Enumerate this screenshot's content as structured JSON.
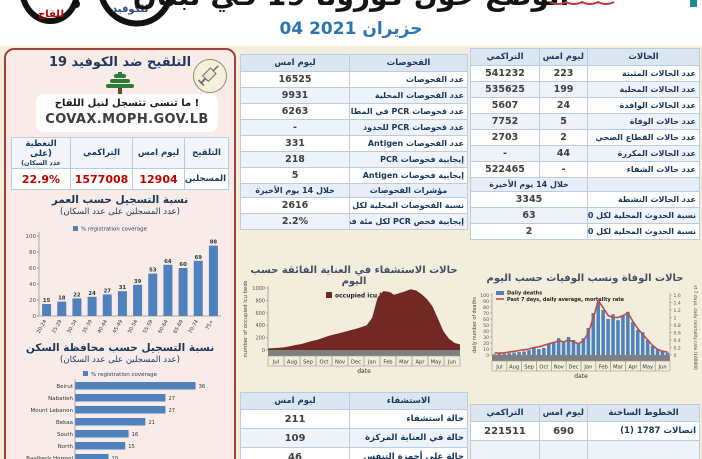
{
  "header": {
    "title": "الوضع حول كورونا 19 في لبنان",
    "date": "04 حزيران 2021",
    "phone_vaccine_label": "للقاح",
    "phone_covid_label": "للكوفيد"
  },
  "vaccine": {
    "title": "التلقيح ضد الكوفيد 19",
    "reminder": "ما تنسى تتسجل لنيل اللقاح !",
    "site": "COVAX.MOPH.GOV.LB",
    "table": {
      "c_vaccination": "التلقيح",
      "c_yesterday": "ليوم امس",
      "c_cumulative": "التراكمي",
      "c_coverage": "التغطية (على",
      "c_coverage2": "عدد السكان)",
      "row_label": "المسجلين",
      "yesterday": "12904",
      "cumulative": "1577008",
      "coverage": "22.9%"
    }
  },
  "tests": {
    "header": {
      "label": "الفحوصات",
      "yesterday": "ليوم امس"
    },
    "rows": [
      {
        "label": "عدد الفحوصات",
        "yesterday": "16525"
      },
      {
        "label": "عدد الفحوصات المحلية",
        "yesterday": "9931"
      },
      {
        "label": "عدد فحوصات PCR في المطار",
        "yesterday": "6263"
      },
      {
        "label": "عدد فحوصات PCR للحدود",
        "yesterday": "-"
      },
      {
        "label": "عدد الفحوصات Antigen",
        "yesterday": "331"
      },
      {
        "label": "إيجابية فحوصات PCR",
        "yesterday": "218"
      },
      {
        "label": "إيجابية فحوصات Antigen",
        "yesterday": "5"
      }
    ],
    "indicators_header": {
      "label": "مؤشرات الفحوصات",
      "yesterday": "خلال 14 يوم الأخيرة"
    },
    "indicator_rows": [
      {
        "label": "نسبة الفحوصات المحلية لكل ......",
        "yesterday": "2616"
      },
      {
        "label": "إيجابية فحص PCR لكل مئة فحص",
        "yesterday": "2.2%"
      }
    ]
  },
  "cases": {
    "header": {
      "label": "الحالات",
      "yesterday": "ليوم امس",
      "cumulative": "التراكمي"
    },
    "rows": [
      {
        "label": "عدد الحالات المثبتة",
        "yesterday": "223",
        "cumulative": "541232"
      },
      {
        "label": "عدد الحالات المحلية",
        "yesterday": "199",
        "cumulative": "535625"
      },
      {
        "label": "عدد الحالات الوافدة",
        "yesterday": "24",
        "cumulative": "5607"
      },
      {
        "label": "عدد حالات الوفاة",
        "yesterday": "5",
        "cumulative": "7752"
      },
      {
        "label": "عدد حالات القطاع الصحي",
        "yesterday": "2",
        "cumulative": "2703"
      },
      {
        "label": "عدد الحالات المكررة",
        "yesterday": "44",
        "cumulative": "-"
      },
      {
        "label": "عدد حالات الشفاء",
        "yesterday": "-",
        "cumulative": "522465"
      }
    ],
    "period_header": {
      "label": "",
      "value": "خلال 14 يوم الأخيرة"
    },
    "period_rows": [
      {
        "label": "عدد الحالات النشطة",
        "value": "3345"
      },
      {
        "label": "نسبة الحدوث المحلية لكل 100000",
        "value": "63"
      },
      {
        "label": "نسبة الحدوث المحلية لكل 10000",
        "value": "2"
      }
    ]
  },
  "hospital": {
    "header": {
      "label": "الاستشفاء",
      "yesterday": "ليوم امس"
    },
    "rows": [
      {
        "label": "حالة استشفاء",
        "yesterday": "211"
      },
      {
        "label": "حالة في العناية المركزة",
        "yesterday": "109"
      },
      {
        "label": "حالة على أجهزة التنفس",
        "yesterday": "46"
      }
    ]
  },
  "hotline": {
    "header": {
      "label": "الخطوط الساخنة",
      "yesterday": "ليوم امس",
      "cumulative": "التراكمي"
    },
    "rows": [
      {
        "label": "اتصالات 1787 (1)",
        "yesterday": "690",
        "cumulative": "221511"
      },
      {
        "label": "",
        "yesterday": "",
        "cumulative": ""
      }
    ]
  },
  "chart_data": [
    {
      "type": "bar",
      "title": "نسبة التسجيل حسب العمر",
      "subtitle": "(عدد المسجلين على عدد السكان)",
      "legend": [
        "% registration coverage"
      ],
      "categories": [
        "20-24",
        "25-29",
        "30-34",
        "35-39",
        "40-44",
        "45-49",
        "50-54",
        "55-59",
        "60-64",
        "65-69",
        "70-74",
        "75+"
      ],
      "values": [
        15,
        18,
        22,
        24,
        27,
        31,
        39,
        53,
        64,
        60,
        69,
        88
      ],
      "ylim": [
        0,
        100
      ],
      "yticks": [
        0,
        20,
        40,
        60,
        80,
        100
      ],
      "bar_color": "#4f81bd"
    },
    {
      "type": "bar-horizontal",
      "title": "نسبة التسجيل حسب محافظة السكن",
      "subtitle": "(عدد المسجلين على عدد السكان)",
      "legend": [
        "% registration coverage"
      ],
      "categories": [
        "Beirut",
        "Nabatieh",
        "Mount Lebanon",
        "Bekaa",
        "South",
        "North",
        "Baalbeck Hermel",
        "Akkar"
      ],
      "values": [
        36,
        27,
        27,
        21,
        16,
        15,
        10,
        8
      ],
      "xlim": [
        0,
        40
      ],
      "bar_color": "#4f81bd"
    },
    {
      "type": "area",
      "title": "حالات الاستشفاء في العناية الفائقة حسب اليوم",
      "legend": [
        "occupied icu bed"
      ],
      "ylabel": "number of occupied icu beds",
      "xlabel": "date",
      "months": [
        "Jul",
        "Aug",
        "Sep",
        "Oct",
        "Nov",
        "Dec",
        "Jan",
        "Feb",
        "Mar",
        "Apr",
        "May",
        "Jun"
      ],
      "ylim": [
        0,
        1000
      ],
      "yticks": [
        0,
        200,
        400,
        600,
        800,
        1000
      ],
      "values": [
        25,
        30,
        35,
        45,
        60,
        80,
        95,
        120,
        145,
        165,
        195,
        225,
        250,
        270,
        295,
        320,
        340,
        370,
        400,
        520,
        850,
        950,
        940,
        890,
        920,
        945,
        980,
        960,
        900,
        820,
        700,
        500,
        300,
        180,
        115,
        90
      ],
      "color": "#722823"
    },
    {
      "type": "combo",
      "title": "حالات الوفاة ونسب الوفيات حسب اليوم",
      "legend": [
        "Daily deaths",
        "Past 7 days, daily average, mortality rate"
      ],
      "ylabel_left": "daily number of deaths",
      "ylabel_right": "Past 7 days, daily mortality rate /100000",
      "xlabel": "date",
      "months": [
        "Jul",
        "Aug",
        "Sep",
        "Oct",
        "Nov",
        "Dec",
        "Jan",
        "Feb",
        "Mar",
        "Apr",
        "May",
        "Jun"
      ],
      "ylim_left": [
        0,
        100
      ],
      "yticks_left": [
        0,
        10,
        20,
        30,
        40,
        50,
        60,
        70,
        80,
        90,
        100
      ],
      "ylim_right": [
        0,
        1.6
      ],
      "yticks_right": [
        0,
        0.2,
        0.4,
        0.6,
        0.8,
        1.0,
        1.2,
        1.4,
        1.6
      ],
      "bars": [
        1,
        2,
        2,
        3,
        4,
        5,
        6,
        8,
        12,
        10,
        12,
        18,
        22,
        28,
        22,
        30,
        25,
        20,
        28,
        45,
        70,
        88,
        75,
        60,
        68,
        58,
        66,
        72,
        55,
        42,
        38,
        25,
        15,
        10,
        6,
        4
      ],
      "line": [
        0.05,
        0.05,
        0.06,
        0.08,
        0.1,
        0.12,
        0.14,
        0.16,
        0.2,
        0.22,
        0.26,
        0.3,
        0.33,
        0.38,
        0.35,
        0.4,
        0.35,
        0.3,
        0.38,
        0.6,
        1.0,
        1.45,
        1.25,
        1.05,
        1.0,
        1.0,
        1.05,
        1.12,
        0.9,
        0.7,
        0.55,
        0.4,
        0.25,
        0.15,
        0.1,
        0.08
      ],
      "bar_color": "#4f81bd",
      "line_color": "#be4b48"
    }
  ]
}
